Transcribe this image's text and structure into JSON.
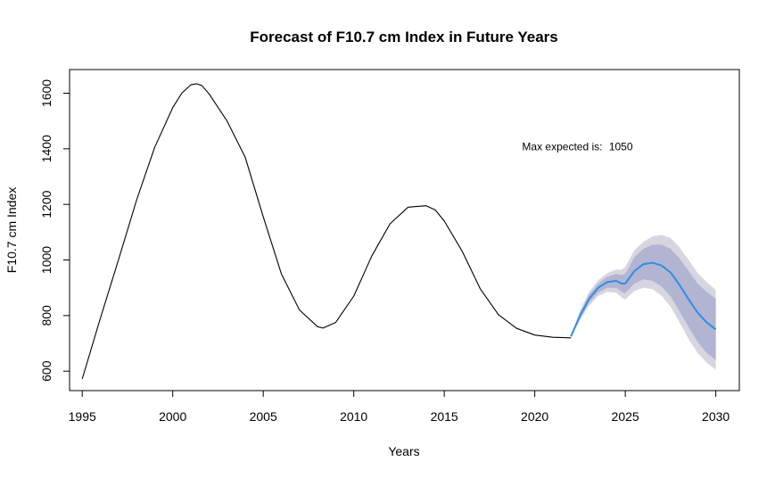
{
  "chart_data": {
    "type": "line",
    "title": "Forecast of F10.7 cm Index in Future Years",
    "xlabel": "Years",
    "ylabel": "F10.7 cm Index",
    "xlim": [
      1994.3,
      2031.3
    ],
    "ylim": [
      530,
      1685
    ],
    "x_ticks": [
      1995,
      2000,
      2005,
      2010,
      2015,
      2020,
      2025,
      2030
    ],
    "y_ticks": [
      600,
      800,
      1000,
      1200,
      1400,
      1600
    ],
    "grid": false,
    "annotation": {
      "text": "Max expected is:",
      "value": "1050",
      "x": 2019.3,
      "y": 1395
    },
    "colors": {
      "history": "#000000",
      "forecast": "#2e8fe0",
      "band80": "#b2b4d2",
      "band95": "#d6d6e0"
    },
    "series": [
      {
        "role": "history",
        "x": [
          1995,
          1996,
          1997,
          1998,
          1999,
          2000,
          2000.5,
          2001,
          2001.3,
          2001.6,
          2002,
          2003,
          2004,
          2005,
          2006,
          2007,
          2008,
          2008.3,
          2009,
          2010,
          2011,
          2012,
          2013,
          2014,
          2014.5,
          2015,
          2016,
          2017,
          2018,
          2019,
          2020,
          2021,
          2022
        ],
        "y": [
          572,
          790,
          1000,
          1215,
          1405,
          1548,
          1600,
          1630,
          1634,
          1628,
          1598,
          1500,
          1370,
          1155,
          950,
          820,
          760,
          755,
          775,
          870,
          1015,
          1130,
          1190,
          1195,
          1180,
          1140,
          1030,
          895,
          803,
          754,
          730,
          722,
          720
        ]
      },
      {
        "role": "forecast",
        "x": [
          2022,
          2022.5,
          2023,
          2023.5,
          2024,
          2024.5,
          2024.8,
          2025,
          2025.5,
          2026,
          2026.5,
          2027,
          2027.5,
          2028,
          2028.5,
          2029,
          2029.5,
          2030
        ],
        "y": [
          725,
          800,
          860,
          900,
          920,
          925,
          915,
          915,
          960,
          985,
          990,
          980,
          955,
          910,
          858,
          810,
          775,
          750
        ],
        "lo80": [
          725,
          790,
          845,
          882,
          900,
          900,
          885,
          880,
          915,
          930,
          925,
          905,
          870,
          815,
          758,
          705,
          665,
          640
        ],
        "hi80": [
          725,
          810,
          875,
          915,
          940,
          950,
          945,
          950,
          1010,
          1040,
          1055,
          1055,
          1040,
          1005,
          960,
          915,
          885,
          860
        ],
        "lo95": [
          725,
          783,
          836,
          870,
          885,
          882,
          865,
          858,
          888,
          900,
          895,
          872,
          832,
          775,
          715,
          665,
          630,
          605
        ],
        "hi95": [
          725,
          818,
          885,
          927,
          953,
          965,
          965,
          975,
          1035,
          1065,
          1085,
          1090,
          1080,
          1045,
          1000,
          953,
          920,
          892
        ]
      }
    ]
  }
}
